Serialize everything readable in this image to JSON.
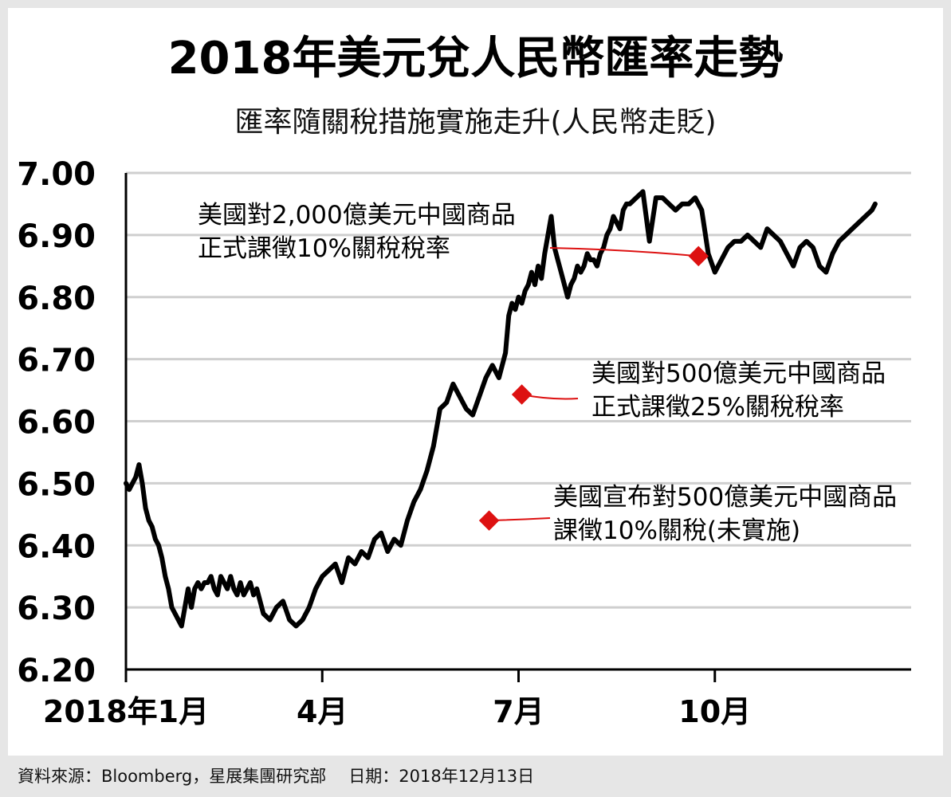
{
  "chart_data": {
    "type": "line",
    "title": "2018年美元兌人民幣匯率走勢",
    "subtitle": "匯率隨關稅措施實施走升(人民幣走貶)",
    "ylim": [
      6.2,
      7.0
    ],
    "y_ticks": [
      "7.00",
      "6.90",
      "6.80",
      "6.70",
      "6.60",
      "6.50",
      "6.40",
      "6.30",
      "6.20"
    ],
    "y_tick_values": [
      7.0,
      6.9,
      6.8,
      6.7,
      6.6,
      6.5,
      6.4,
      6.3,
      6.2
    ],
    "x_domain_months": [
      0,
      12
    ],
    "x_ticks": [
      {
        "label": "2018年1月",
        "month": 0
      },
      {
        "label": "4月",
        "month": 3
      },
      {
        "label": "7月",
        "month": 6
      },
      {
        "label": "10月",
        "month": 9
      }
    ],
    "grid": "horizontal",
    "line_color": "#000000",
    "marker_color": "#dd1111",
    "series": [
      {
        "x": [
          0.0,
          0.05,
          0.1,
          0.15,
          0.2,
          0.25,
          0.3,
          0.35,
          0.4,
          0.45,
          0.5,
          0.55,
          0.6,
          0.65,
          0.7,
          0.75,
          0.8,
          0.85,
          0.9,
          0.95,
          1.0,
          1.05,
          1.1,
          1.15,
          1.2,
          1.25,
          1.3,
          1.35,
          1.4,
          1.45,
          1.5,
          1.55,
          1.6,
          1.65,
          1.7,
          1.75,
          1.8,
          1.85,
          1.9,
          1.95,
          2.0,
          2.1,
          2.2,
          2.3,
          2.4,
          2.5,
          2.6,
          2.7,
          2.8,
          2.9,
          3.0,
          3.1,
          3.2,
          3.3,
          3.4,
          3.5,
          3.6,
          3.7,
          3.8,
          3.9,
          4.0,
          4.1,
          4.2,
          4.3,
          4.4,
          4.5,
          4.6,
          4.7,
          4.8,
          4.9,
          5.0,
          5.1,
          5.2,
          5.3,
          5.4,
          5.5,
          5.6,
          5.7,
          5.8,
          5.85,
          5.9,
          5.95,
          6.0,
          6.05,
          6.1,
          6.15,
          6.2,
          6.25,
          6.3,
          6.35,
          6.4,
          6.45,
          6.5,
          6.55,
          6.6,
          6.65,
          6.7,
          6.75,
          6.8,
          6.85,
          6.9,
          6.95,
          7.0,
          7.05,
          7.1,
          7.15,
          7.2,
          7.25,
          7.3,
          7.35,
          7.4,
          7.45,
          7.5,
          7.55,
          7.6,
          7.65,
          7.7,
          7.8,
          7.9,
          8.0,
          8.1,
          8.2,
          8.3,
          8.4,
          8.5,
          8.6,
          8.7,
          8.8,
          8.9,
          9.0,
          9.1,
          9.2,
          9.3,
          9.4,
          9.5,
          9.6,
          9.7,
          9.8,
          9.9,
          10.0,
          10.1,
          10.2,
          10.3,
          10.4,
          10.5,
          10.6,
          10.7,
          10.8,
          10.9,
          11.0,
          11.1,
          11.2,
          11.3,
          11.4,
          11.45
        ],
        "y": [
          6.5,
          6.49,
          6.5,
          6.51,
          6.53,
          6.5,
          6.46,
          6.44,
          6.43,
          6.41,
          6.4,
          6.38,
          6.35,
          6.33,
          6.3,
          6.29,
          6.28,
          6.27,
          6.3,
          6.33,
          6.3,
          6.33,
          6.34,
          6.33,
          6.34,
          6.34,
          6.35,
          6.33,
          6.32,
          6.35,
          6.34,
          6.33,
          6.35,
          6.33,
          6.32,
          6.34,
          6.32,
          6.33,
          6.34,
          6.32,
          6.33,
          6.29,
          6.28,
          6.3,
          6.31,
          6.28,
          6.27,
          6.28,
          6.3,
          6.33,
          6.35,
          6.36,
          6.37,
          6.34,
          6.38,
          6.37,
          6.39,
          6.38,
          6.41,
          6.42,
          6.39,
          6.41,
          6.4,
          6.44,
          6.47,
          6.49,
          6.52,
          6.56,
          6.62,
          6.63,
          6.66,
          6.64,
          6.62,
          6.61,
          6.64,
          6.67,
          6.69,
          6.67,
          6.71,
          6.77,
          6.79,
          6.78,
          6.8,
          6.79,
          6.81,
          6.82,
          6.84,
          6.82,
          6.85,
          6.83,
          6.87,
          6.9,
          6.93,
          6.88,
          6.86,
          6.84,
          6.82,
          6.8,
          6.82,
          6.83,
          6.85,
          6.84,
          6.85,
          6.87,
          6.86,
          6.86,
          6.85,
          6.87,
          6.88,
          6.9,
          6.91,
          6.93,
          6.92,
          6.91,
          6.94,
          6.95,
          6.95,
          6.96,
          6.97,
          6.89,
          6.96,
          6.96,
          6.95,
          6.94,
          6.95,
          6.95,
          6.96,
          6.94,
          6.87,
          6.84,
          6.86,
          6.88,
          6.89,
          6.89,
          6.9,
          6.89,
          6.88,
          6.91,
          6.9,
          6.89,
          6.87,
          6.85,
          6.88,
          6.89,
          6.88,
          6.85,
          6.84,
          6.87,
          6.89,
          6.9,
          6.91,
          6.92,
          6.93,
          6.94,
          6.95
        ]
      }
    ],
    "annotations": [
      {
        "line1": "美國對2,000億美元中國商品",
        "line2": "正式課徵10%關稅稅率",
        "month": 8.75,
        "value": 6.866
      },
      {
        "line1": "美國對500億美元中國商品",
        "line2": "正式課徵25%關稅稅率",
        "month": 6.05,
        "value": 6.643
      },
      {
        "line1": "美國宣布對500億美元中國商品",
        "line2": "課徵10%關稅(未實施)",
        "month": 5.55,
        "value": 6.44
      }
    ]
  },
  "footer": {
    "source": "資料來源：Bloomberg，星展集團研究部",
    "date": "日期：2018年12月13日"
  }
}
